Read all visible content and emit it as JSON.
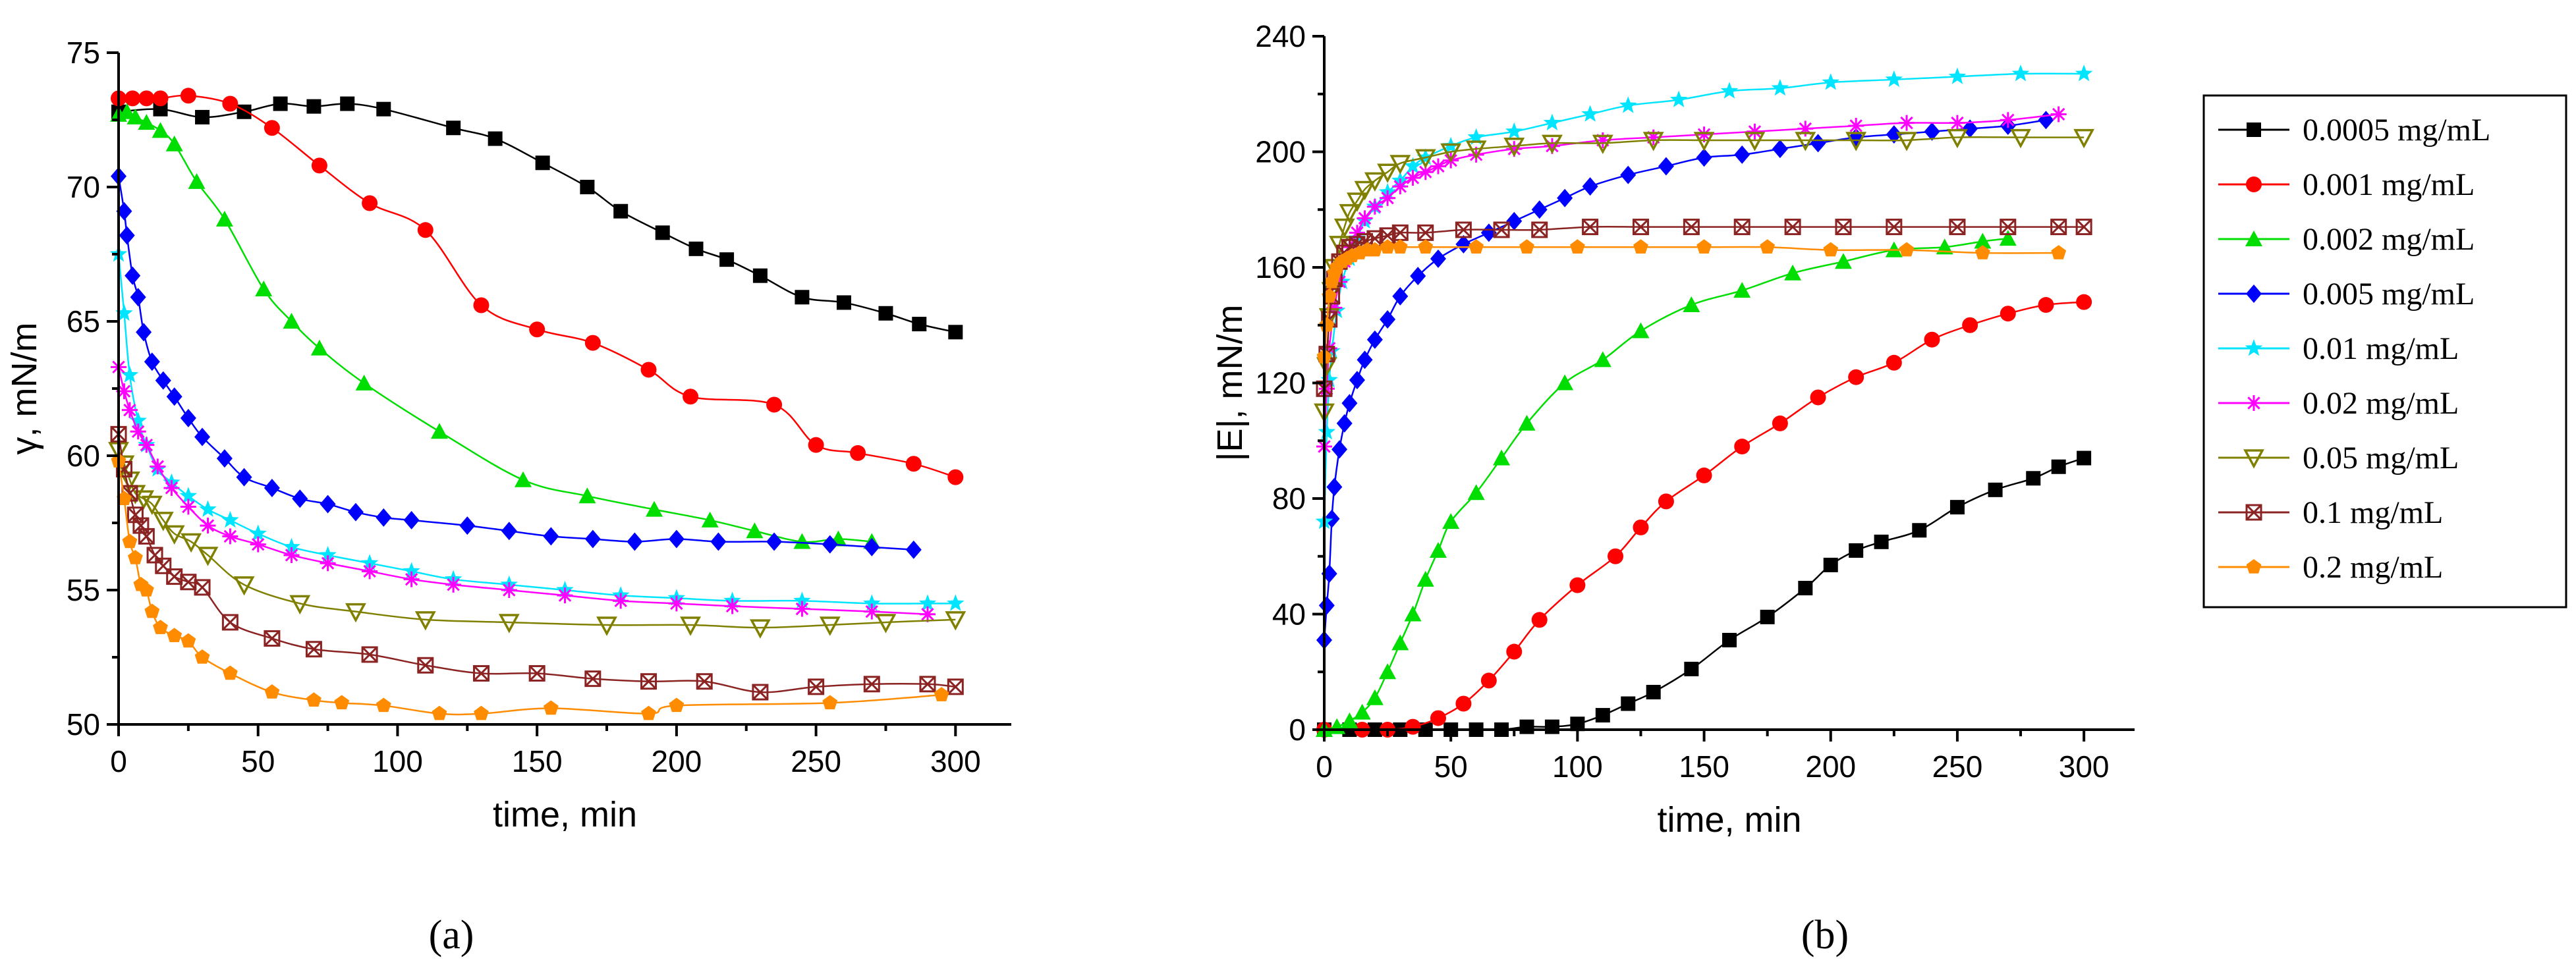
{
  "figure": {
    "panels": [
      {
        "label": "(a)"
      },
      {
        "label": "(b)"
      }
    ]
  },
  "series_styles": [
    {
      "name": "0.0005 mg/mL",
      "color": "#000000",
      "marker": "square"
    },
    {
      "name": "0.001 mg/mL",
      "color": "#ff0000",
      "marker": "circle"
    },
    {
      "name": "0.002 mg/mL",
      "color": "#00dd00",
      "marker": "triangle-up"
    },
    {
      "name": "0.005 mg/mL",
      "color": "#0000ff",
      "marker": "diamond"
    },
    {
      "name": "0.01 mg/mL",
      "color": "#00e5ff",
      "marker": "star"
    },
    {
      "name": "0.02 mg/mL",
      "color": "#ff00ff",
      "marker": "asterisk"
    },
    {
      "name": "0.05 mg/mL",
      "color": "#808000",
      "marker": "triangle-down"
    },
    {
      "name": "0.1 mg/mL",
      "color": "#8b2323",
      "marker": "crossed-square"
    },
    {
      "name": "0.2 mg/mL",
      "color": "#ff8c00",
      "marker": "pentagon"
    }
  ],
  "chart_data": [
    {
      "type": "scatter",
      "panel": "(a)",
      "title": "",
      "xlabel": "time, min",
      "ylabel": "γ, mN/m",
      "xlim": [
        0,
        320
      ],
      "ylim": [
        50,
        75
      ],
      "xticks": [
        0,
        50,
        100,
        150,
        200,
        250,
        300
      ],
      "yticks": [
        50,
        55,
        60,
        65,
        70,
        75
      ],
      "legend": "none",
      "series": [
        {
          "name": "0.0005 mg/mL",
          "x": [
            0,
            15,
            30,
            45,
            58,
            70,
            82,
            95,
            120,
            135,
            152,
            168,
            180,
            195,
            207,
            218,
            230,
            245,
            260,
            275,
            287,
            300
          ],
          "y": [
            72.8,
            72.9,
            72.6,
            72.8,
            73.1,
            73.0,
            73.1,
            72.9,
            72.2,
            71.8,
            70.9,
            70.0,
            69.1,
            68.3,
            67.7,
            67.3,
            66.7,
            65.9,
            65.7,
            65.3,
            64.9,
            64.6
          ]
        },
        {
          "name": "0.001 mg/mL",
          "x": [
            0,
            5,
            10,
            15,
            25,
            40,
            55,
            72,
            90,
            110,
            130,
            150,
            170,
            190,
            205,
            235,
            250,
            265,
            285,
            300
          ],
          "y": [
            73.3,
            73.3,
            73.3,
            73.3,
            73.4,
            73.1,
            72.2,
            70.8,
            69.4,
            68.4,
            65.6,
            64.7,
            64.2,
            63.2,
            62.2,
            61.9,
            60.4,
            60.1,
            59.7,
            59.2
          ]
        },
        {
          "name": "0.002 mg/mL",
          "x": [
            0,
            3,
            6,
            10,
            15,
            20,
            28,
            38,
            52,
            62,
            72,
            88,
            115,
            145,
            168,
            192,
            212,
            228,
            245,
            258,
            270
          ],
          "y": [
            72.7,
            72.8,
            72.6,
            72.4,
            72.1,
            71.6,
            70.2,
            68.8,
            66.2,
            65.0,
            64.0,
            62.7,
            60.9,
            59.1,
            58.5,
            58.0,
            57.6,
            57.2,
            56.8,
            56.9,
            56.8
          ]
        },
        {
          "name": "0.005 mg/mL",
          "x": [
            0,
            2,
            3,
            5,
            7,
            9,
            12,
            16,
            20,
            25,
            30,
            38,
            45,
            55,
            65,
            75,
            85,
            95,
            105,
            125,
            140,
            155,
            170,
            185,
            200,
            215,
            235,
            255,
            270,
            285
          ],
          "y": [
            70.4,
            69.1,
            68.2,
            66.7,
            65.9,
            64.6,
            63.5,
            62.8,
            62.2,
            61.4,
            60.7,
            59.9,
            59.2,
            58.8,
            58.4,
            58.2,
            57.9,
            57.7,
            57.6,
            57.4,
            57.2,
            57.0,
            56.9,
            56.8,
            56.9,
            56.8,
            56.8,
            56.7,
            56.6,
            56.5
          ]
        },
        {
          "name": "0.01 mg/mL",
          "x": [
            0,
            2,
            4,
            7,
            10,
            14,
            19,
            25,
            32,
            40,
            50,
            62,
            75,
            90,
            105,
            120,
            140,
            160,
            180,
            200,
            220,
            245,
            270,
            290,
            300
          ],
          "y": [
            67.5,
            65.3,
            63.0,
            61.3,
            60.4,
            59.5,
            59.0,
            58.5,
            58.0,
            57.6,
            57.1,
            56.6,
            56.3,
            56.0,
            55.7,
            55.4,
            55.2,
            55.0,
            54.8,
            54.7,
            54.6,
            54.6,
            54.5,
            54.5,
            54.5
          ]
        },
        {
          "name": "0.02 mg/mL",
          "x": [
            0,
            2,
            4,
            7,
            10,
            14,
            19,
            25,
            32,
            40,
            50,
            62,
            75,
            90,
            105,
            120,
            140,
            160,
            180,
            200,
            220,
            245,
            270,
            290
          ],
          "y": [
            63.3,
            62.4,
            61.7,
            60.9,
            60.4,
            59.6,
            58.8,
            58.1,
            57.4,
            57.0,
            56.7,
            56.3,
            56.0,
            55.7,
            55.4,
            55.2,
            55.0,
            54.8,
            54.6,
            54.5,
            54.4,
            54.3,
            54.2,
            54.1
          ]
        },
        {
          "name": "0.05 mg/mL",
          "x": [
            0,
            2,
            4,
            6,
            9,
            12,
            16,
            20,
            26,
            32,
            45,
            65,
            85,
            110,
            140,
            175,
            205,
            230,
            255,
            275,
            300
          ],
          "y": [
            60.2,
            59.7,
            59.1,
            58.6,
            58.4,
            58.2,
            57.6,
            57.1,
            56.8,
            56.3,
            55.2,
            54.5,
            54.2,
            53.9,
            53.8,
            53.7,
            53.7,
            53.6,
            53.7,
            53.8,
            53.9
          ]
        },
        {
          "name": "0.1 mg/mL",
          "x": [
            0,
            2,
            4,
            6,
            8,
            10,
            13,
            16,
            20,
            25,
            30,
            40,
            55,
            70,
            90,
            110,
            130,
            150,
            170,
            190,
            210,
            230,
            250,
            270,
            290,
            300
          ],
          "y": [
            60.8,
            59.5,
            58.6,
            57.8,
            57.4,
            57.0,
            56.3,
            55.9,
            55.5,
            55.3,
            55.1,
            53.8,
            53.2,
            52.8,
            52.6,
            52.2,
            51.9,
            51.9,
            51.7,
            51.6,
            51.6,
            51.2,
            51.4,
            51.5,
            51.5,
            51.4
          ]
        },
        {
          "name": "0.2 mg/mL",
          "x": [
            0,
            2,
            4,
            6,
            8,
            10,
            12,
            15,
            20,
            25,
            30,
            40,
            55,
            70,
            80,
            95,
            115,
            130,
            155,
            190,
            200,
            255,
            295
          ],
          "y": [
            59.8,
            58.4,
            56.8,
            56.2,
            55.2,
            55.0,
            54.2,
            53.6,
            53.3,
            53.1,
            52.5,
            51.9,
            51.2,
            50.9,
            50.8,
            50.7,
            50.4,
            50.4,
            50.6,
            50.4,
            50.7,
            50.8,
            51.1
          ]
        }
      ]
    },
    {
      "type": "scatter",
      "panel": "(b)",
      "title": "",
      "xlabel": "time, min",
      "ylabel": "|E|, mN/m",
      "xlim": [
        0,
        320
      ],
      "ylim": [
        0,
        240
      ],
      "xticks": [
        0,
        50,
        100,
        150,
        200,
        250,
        300
      ],
      "yticks": [
        0,
        40,
        80,
        120,
        160,
        200,
        240
      ],
      "legend": "right",
      "series": [
        {
          "name": "0.0005 mg/mL",
          "x": [
            0,
            10,
            20,
            30,
            40,
            50,
            60,
            70,
            80,
            90,
            100,
            110,
            120,
            130,
            145,
            160,
            175,
            190,
            200,
            210,
            220,
            235,
            250,
            265,
            280,
            290,
            300
          ],
          "y": [
            0,
            0,
            0,
            0,
            0,
            0,
            0,
            0,
            1,
            1,
            2,
            5,
            9,
            13,
            21,
            31,
            39,
            49,
            57,
            62,
            65,
            69,
            77,
            83,
            87,
            91,
            94
          ]
        },
        {
          "name": "0.001 mg/mL",
          "x": [
            0,
            15,
            25,
            35,
            45,
            55,
            65,
            75,
            85,
            100,
            115,
            125,
            135,
            150,
            165,
            180,
            195,
            210,
            225,
            240,
            255,
            270,
            285,
            300
          ],
          "y": [
            0,
            0,
            0,
            1,
            4,
            9,
            17,
            27,
            38,
            50,
            60,
            70,
            79,
            88,
            98,
            106,
            115,
            122,
            127,
            135,
            140,
            144,
            147,
            148
          ]
        },
        {
          "name": "0.002 mg/mL",
          "x": [
            0,
            5,
            10,
            15,
            20,
            25,
            30,
            35,
            40,
            45,
            50,
            60,
            70,
            80,
            95,
            110,
            125,
            145,
            165,
            185,
            205,
            225,
            245,
            260,
            270
          ],
          "y": [
            0,
            1,
            3,
            6,
            11,
            20,
            30,
            40,
            52,
            62,
            72,
            82,
            94,
            106,
            120,
            128,
            138,
            147,
            152,
            158,
            162,
            166,
            167,
            169,
            170
          ]
        },
        {
          "name": "0.005 mg/mL",
          "x": [
            0,
            1,
            2,
            3,
            4,
            6,
            8,
            10,
            13,
            16,
            20,
            25,
            30,
            37,
            45,
            55,
            65,
            75,
            85,
            95,
            105,
            120,
            135,
            150,
            165,
            180,
            195,
            210,
            225,
            240,
            255,
            270,
            285
          ],
          "y": [
            31,
            43,
            54,
            73,
            84,
            97,
            106,
            113,
            121,
            128,
            135,
            142,
            150,
            157,
            163,
            168,
            172,
            176,
            180,
            184,
            188,
            192,
            195,
            198,
            199,
            201,
            203,
            205,
            206,
            207,
            208,
            209,
            211
          ]
        },
        {
          "name": "0.01 mg/mL",
          "x": [
            0,
            1,
            2,
            3,
            5,
            7,
            10,
            13,
            16,
            20,
            25,
            30,
            35,
            40,
            50,
            60,
            75,
            90,
            105,
            120,
            140,
            160,
            180,
            200,
            225,
            250,
            275,
            300
          ],
          "y": [
            72,
            103,
            121,
            131,
            145,
            155,
            163,
            170,
            176,
            181,
            186,
            190,
            195,
            198,
            202,
            205,
            207,
            210,
            213,
            216,
            218,
            221,
            222,
            224,
            225,
            226,
            227,
            227
          ]
        },
        {
          "name": "0.02 mg/mL",
          "x": [
            0,
            1,
            2,
            4,
            6,
            8,
            10,
            13,
            16,
            20,
            25,
            30,
            35,
            40,
            45,
            50,
            60,
            75,
            90,
            110,
            130,
            150,
            170,
            190,
            210,
            230,
            250,
            270,
            290
          ],
          "y": [
            98,
            118,
            132,
            146,
            155,
            162,
            167,
            172,
            177,
            181,
            184,
            188,
            191,
            193,
            195,
            197,
            199,
            201,
            202,
            204,
            205,
            206,
            207,
            208,
            209,
            210,
            210,
            211,
            213
          ]
        },
        {
          "name": "0.05 mg/mL",
          "x": [
            0,
            1,
            2,
            3,
            4,
            6,
            8,
            10,
            13,
            16,
            20,
            25,
            30,
            40,
            50,
            60,
            75,
            90,
            110,
            130,
            150,
            170,
            190,
            210,
            230,
            250,
            275,
            300
          ],
          "y": [
            110,
            126,
            143,
            152,
            160,
            168,
            174,
            179,
            183,
            187,
            190,
            193,
            196,
            198,
            200,
            201,
            202,
            203,
            203,
            204,
            204,
            204,
            204,
            204,
            204,
            205,
            205,
            205
          ]
        },
        {
          "name": "0.1 mg/mL",
          "x": [
            0,
            1,
            2,
            3,
            4,
            6,
            8,
            10,
            13,
            16,
            20,
            25,
            30,
            40,
            55,
            70,
            85,
            105,
            125,
            145,
            165,
            185,
            205,
            225,
            250,
            270,
            290,
            300
          ],
          "y": [
            118,
            130,
            142,
            150,
            156,
            162,
            165,
            167,
            168,
            169,
            170,
            171,
            172,
            172,
            173,
            173,
            173,
            174,
            174,
            174,
            174,
            174,
            174,
            174,
            174,
            174,
            174,
            174
          ]
        },
        {
          "name": "0.2 mg/mL",
          "x": [
            0,
            1,
            2,
            3,
            4,
            5,
            7,
            9,
            11,
            14,
            17,
            20,
            25,
            30,
            40,
            60,
            80,
            100,
            125,
            150,
            175,
            200,
            230,
            260,
            290
          ],
          "y": [
            129,
            140,
            150,
            155,
            158,
            160,
            162,
            163,
            164,
            165,
            166,
            166,
            167,
            167,
            167,
            167,
            167,
            167,
            167,
            167,
            167,
            166,
            166,
            165,
            165
          ]
        }
      ]
    }
  ]
}
